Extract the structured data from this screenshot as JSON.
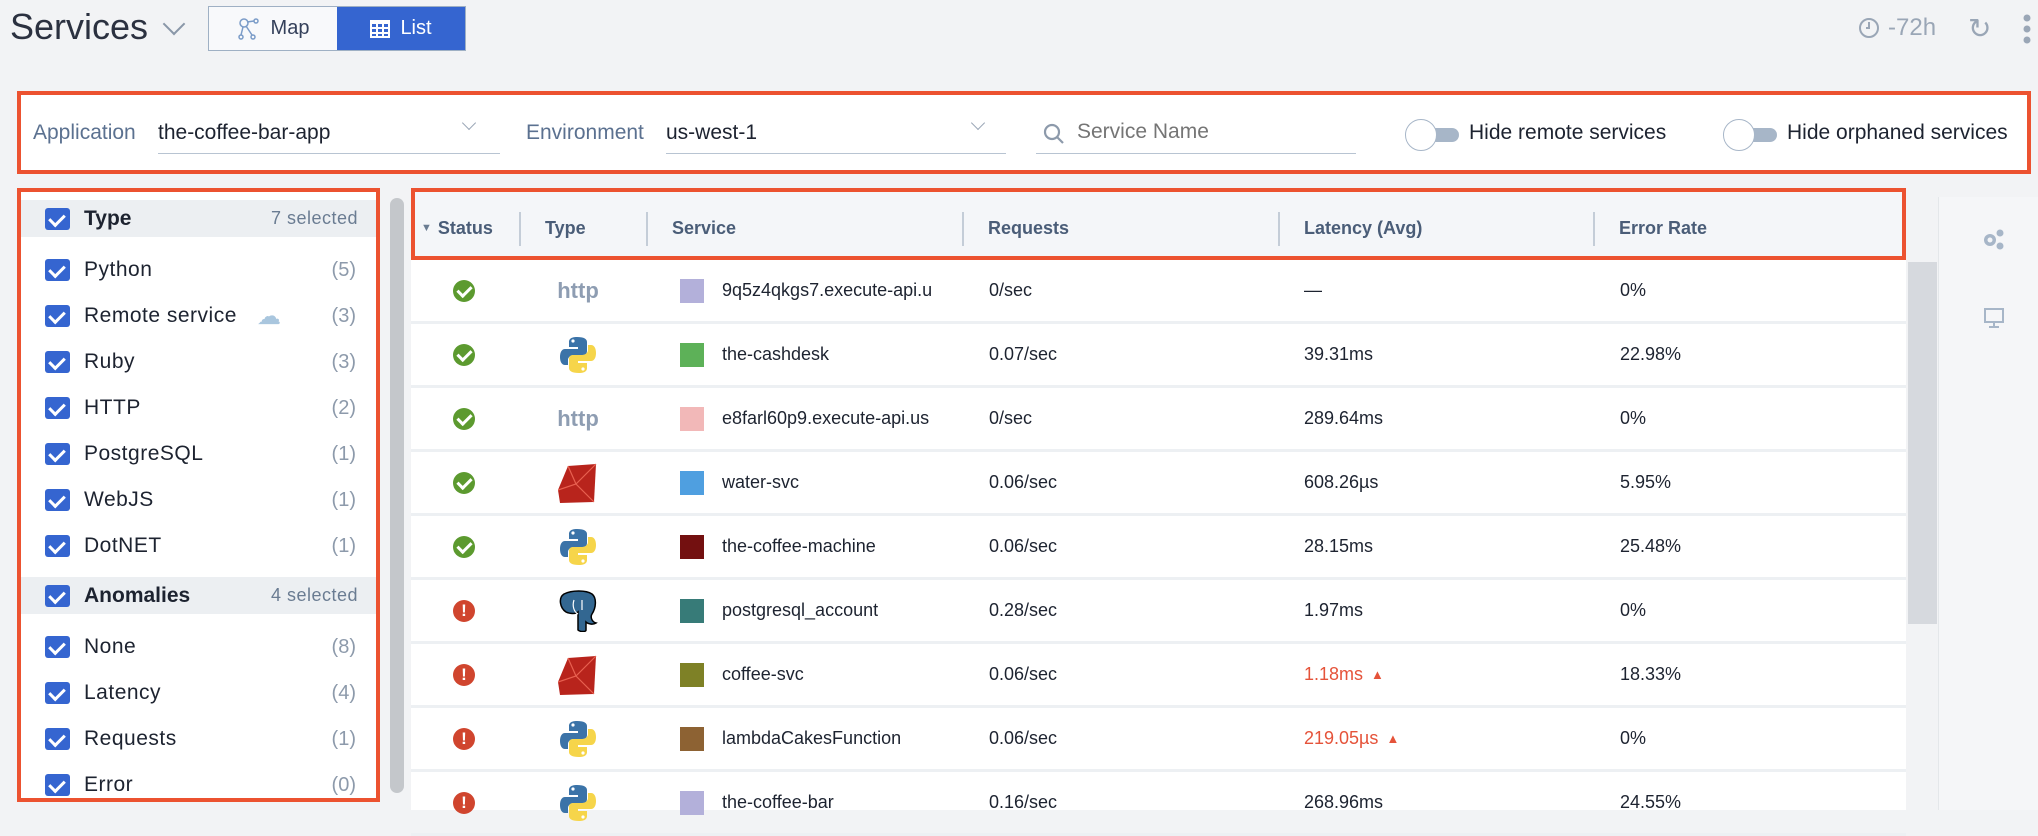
{
  "header": {
    "title": "Services",
    "views": [
      {
        "label": "Map",
        "icon": "network-map-icon",
        "active": false
      },
      {
        "label": "List",
        "icon": "table-grid-icon",
        "active": true
      }
    ],
    "time_range": "-72h"
  },
  "filters": {
    "application_label": "Application",
    "application_value": "the-coffee-bar-app",
    "environment_label": "Environment",
    "environment_value": "us-west-1",
    "search_placeholder": "Service Name",
    "hide_remote_label": "Hide remote services",
    "hide_remote_on": false,
    "hide_orphaned_label": "Hide orphaned services",
    "hide_orphaned_on": false
  },
  "sidebar": {
    "type_group": {
      "label": "Type",
      "selected": "7 selected",
      "items": [
        {
          "label": "Python",
          "count": "(5)"
        },
        {
          "label": "Remote service",
          "count": "(3)",
          "icon": "cloud-icon"
        },
        {
          "label": "Ruby",
          "count": "(3)"
        },
        {
          "label": "HTTP",
          "count": "(2)"
        },
        {
          "label": "PostgreSQL",
          "count": "(1)"
        },
        {
          "label": "WebJS",
          "count": "(1)"
        },
        {
          "label": "DotNET",
          "count": "(1)"
        }
      ]
    },
    "anomalies_group": {
      "label": "Anomalies",
      "selected": "4 selected",
      "items": [
        {
          "label": "None",
          "count": "(8)"
        },
        {
          "label": "Latency",
          "count": "(4)"
        },
        {
          "label": "Requests",
          "count": "(1)"
        },
        {
          "label": "Error",
          "count": "(0)"
        }
      ]
    }
  },
  "table": {
    "columns": [
      "Status",
      "Type",
      "Service",
      "Requests",
      "Latency (Avg)",
      "Error Rate"
    ],
    "rows": [
      {
        "status": "ok",
        "type": "http",
        "service": "9q5z4qkgs7.execute-api.u",
        "color": "#b3b0da",
        "requests": "0/sec",
        "latency": "—",
        "latency_anomaly": false,
        "error_rate": "0%"
      },
      {
        "status": "ok",
        "type": "python",
        "service": "the-cashdesk",
        "color": "#5db158",
        "requests": "0.07/sec",
        "latency": "39.31ms",
        "latency_anomaly": false,
        "error_rate": "22.98%"
      },
      {
        "status": "ok",
        "type": "http",
        "service": "e8farl60p9.execute-api.us",
        "color": "#f2b8b8",
        "requests": "0/sec",
        "latency": "289.64ms",
        "latency_anomaly": false,
        "error_rate": "0%"
      },
      {
        "status": "ok",
        "type": "ruby",
        "service": "water-svc",
        "color": "#4f9fe0",
        "requests": "0.06/sec",
        "latency": "608.26µs",
        "latency_anomaly": false,
        "error_rate": "5.95%"
      },
      {
        "status": "ok",
        "type": "python",
        "service": "the-coffee-machine",
        "color": "#731010",
        "requests": "0.06/sec",
        "latency": "28.15ms",
        "latency_anomaly": false,
        "error_rate": "25.48%"
      },
      {
        "status": "error",
        "type": "postgresql",
        "service": "postgresql_account",
        "color": "#377b78",
        "requests": "0.28/sec",
        "latency": "1.97ms",
        "latency_anomaly": false,
        "error_rate": "0%"
      },
      {
        "status": "error",
        "type": "ruby",
        "service": "coffee-svc",
        "color": "#7e8126",
        "requests": "0.06/sec",
        "latency": "1.18ms",
        "latency_anomaly": true,
        "error_rate": "18.33%"
      },
      {
        "status": "error",
        "type": "python",
        "service": "lambdaCakesFunction",
        "color": "#8d6233",
        "requests": "0.06/sec",
        "latency": "219.05µs",
        "latency_anomaly": true,
        "error_rate": "0%"
      },
      {
        "status": "error",
        "type": "python",
        "service": "the-coffee-bar",
        "color": "#b3b0da",
        "requests": "0.16/sec",
        "latency": "268.96ms",
        "latency_anomaly": false,
        "error_rate": "24.55%"
      }
    ]
  },
  "colors": {
    "accent": "#3565d0",
    "ok": "#5c9a2f",
    "error": "#d0452e",
    "anomaly": "#e5533a",
    "annotation": "#ec5230"
  }
}
